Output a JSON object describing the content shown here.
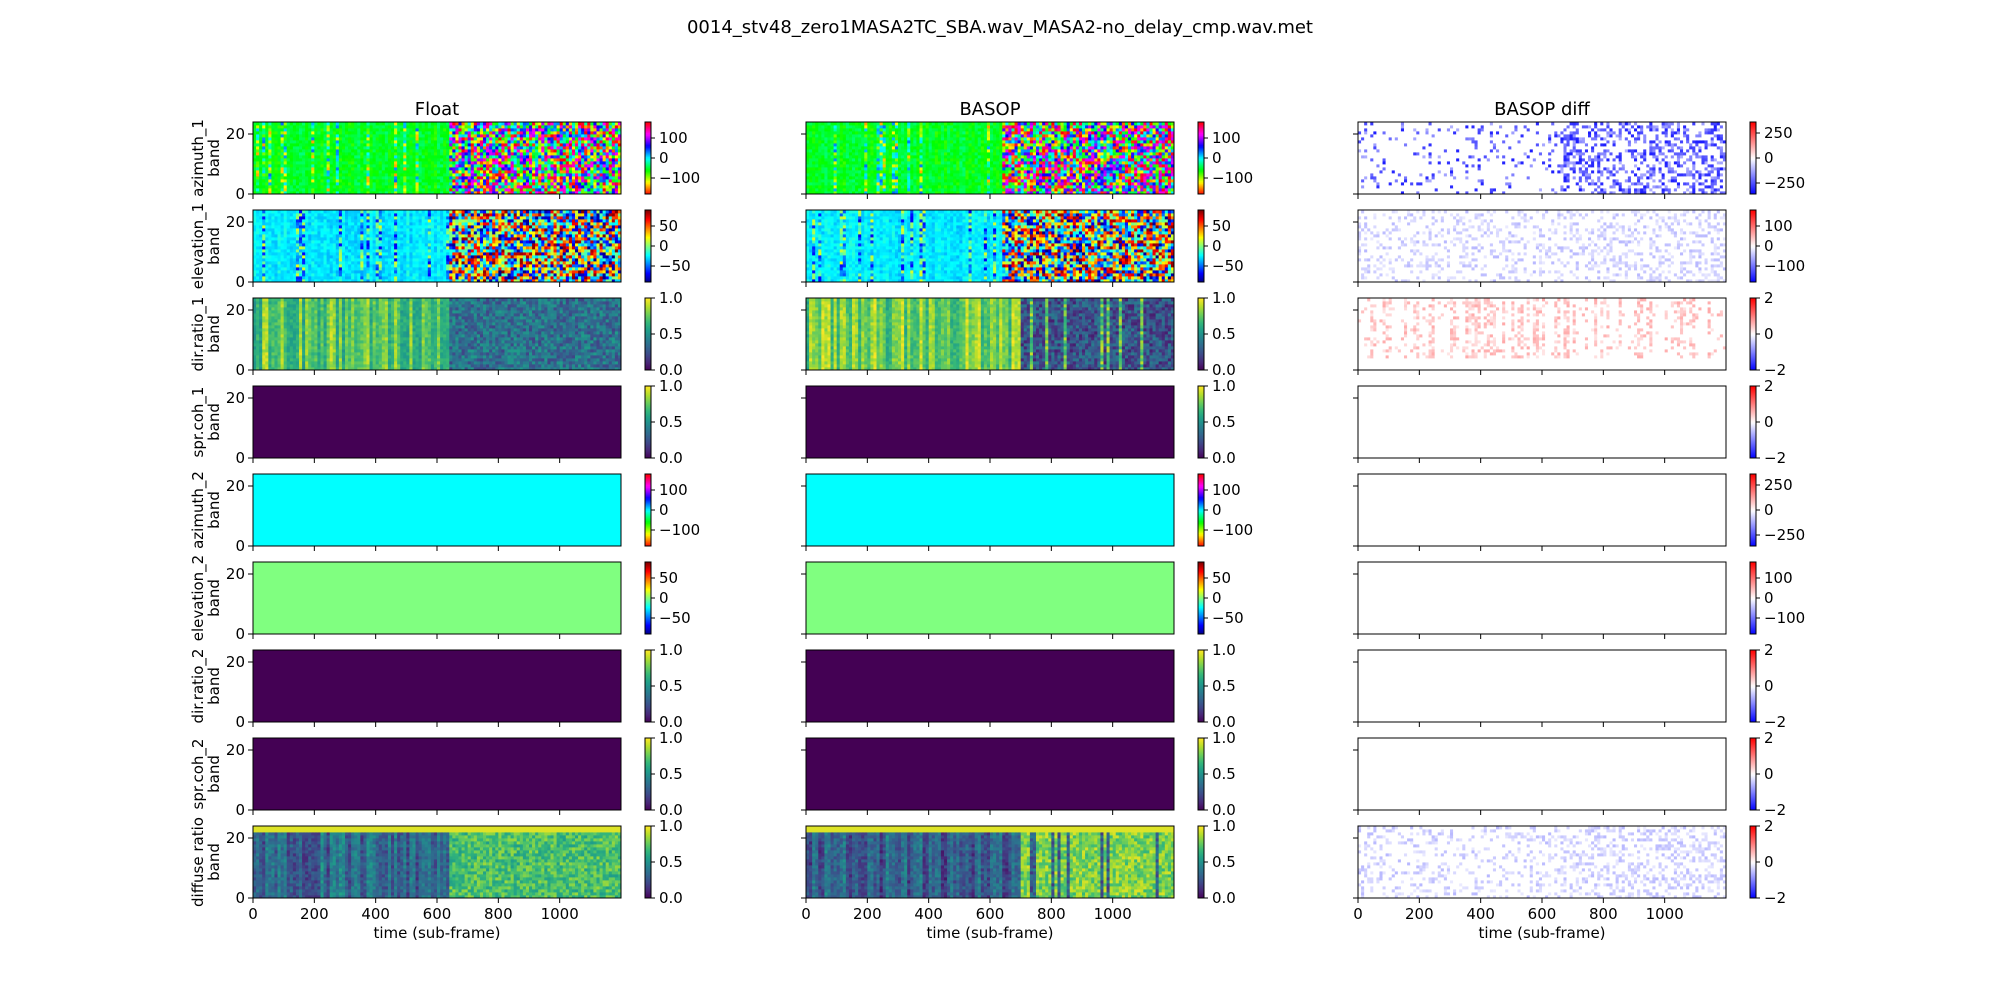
{
  "figure": {
    "suptitle": "0014_stv48_zero1MASA2TC_SBA.wav_MASA2-no_delay_cmp.wav.met"
  },
  "chart_data": {
    "type": "heatmap",
    "columns": [
      {
        "title": "Float",
        "kind": "value"
      },
      {
        "title": "BASOP",
        "kind": "value"
      },
      {
        "title": "BASOP diff",
        "kind": "diff"
      }
    ],
    "rows": [
      {
        "name": "azimuth_1",
        "ylabel": [
          "azimuth_1",
          "band"
        ],
        "cmap": "hsv",
        "vlim": [
          -180,
          180
        ],
        "ticks": [
          "100",
          "0",
          "−100"
        ],
        "tick_values": [
          100,
          0,
          -100
        ],
        "diff_vlim": [
          -360,
          360
        ],
        "diff_ticks": [
          "250",
          "0",
          "−250"
        ],
        "diff_tick_values": [
          250,
          0,
          -250
        ],
        "pattern": "active",
        "basop_pattern": "active",
        "diff_pattern": "blue-strong"
      },
      {
        "name": "elevation_1",
        "ylabel": [
          "elevation_1",
          "band"
        ],
        "cmap": "jet",
        "vlim": [
          -90,
          90
        ],
        "ticks": [
          "50",
          "0",
          "−50"
        ],
        "tick_values": [
          50,
          0,
          -50
        ],
        "diff_vlim": [
          -180,
          180
        ],
        "diff_ticks": [
          "100",
          "0",
          "−100"
        ],
        "diff_tick_values": [
          100,
          0,
          -100
        ],
        "pattern": "active",
        "basop_pattern": "active",
        "diff_pattern": "blue-light"
      },
      {
        "name": "dir.ratio_1",
        "ylabel": [
          "dir.ratio_1",
          "band"
        ],
        "cmap": "viridis",
        "vlim": [
          0,
          1
        ],
        "ticks": [
          "1.0",
          "0.5",
          "0.0"
        ],
        "tick_values": [
          1,
          0.5,
          0
        ],
        "diff_vlim": [
          -2,
          2
        ],
        "diff_ticks": [
          "2",
          "0",
          "−2"
        ],
        "diff_tick_values": [
          2,
          0,
          -2
        ],
        "pattern": "ratio-float",
        "basop_pattern": "ratio-basop",
        "diff_pattern": "red-light"
      },
      {
        "name": "spr.coh_1",
        "ylabel": [
          "spr.coh_1",
          "band"
        ],
        "cmap": "viridis",
        "vlim": [
          0,
          1
        ],
        "ticks": [
          "1.0",
          "0.5",
          "0.0"
        ],
        "tick_values": [
          1,
          0.5,
          0
        ],
        "diff_vlim": [
          -2,
          2
        ],
        "diff_ticks": [
          "2",
          "0",
          "−2"
        ],
        "diff_tick_values": [
          2,
          0,
          -2
        ],
        "constant": 0.0,
        "diff_constant": 0.0
      },
      {
        "name": "azimuth_2",
        "ylabel": [
          "azimuth_2",
          "band"
        ],
        "cmap": "hsv",
        "vlim": [
          -180,
          180
        ],
        "ticks": [
          "100",
          "0",
          "−100"
        ],
        "tick_values": [
          100,
          0,
          -100
        ],
        "diff_vlim": [
          -360,
          360
        ],
        "diff_ticks": [
          "250",
          "0",
          "−250"
        ],
        "diff_tick_values": [
          250,
          0,
          -250
        ],
        "constant": 0.0,
        "diff_constant": 0.0
      },
      {
        "name": "elevation_2",
        "ylabel": [
          "elevation_2",
          "band"
        ],
        "cmap": "jet",
        "vlim": [
          -90,
          90
        ],
        "ticks": [
          "50",
          "0",
          "−50"
        ],
        "tick_values": [
          50,
          0,
          -50
        ],
        "diff_vlim": [
          -180,
          180
        ],
        "diff_ticks": [
          "100",
          "0",
          "−100"
        ],
        "diff_tick_values": [
          100,
          0,
          -100
        ],
        "constant": 0.0,
        "diff_constant": 0.0
      },
      {
        "name": "dir.ratio_2",
        "ylabel": [
          "dir.ratio_2",
          "band"
        ],
        "cmap": "viridis",
        "vlim": [
          0,
          1
        ],
        "ticks": [
          "1.0",
          "0.5",
          "0.0"
        ],
        "tick_values": [
          1,
          0.5,
          0
        ],
        "diff_vlim": [
          -2,
          2
        ],
        "diff_ticks": [
          "2",
          "0",
          "−2"
        ],
        "diff_tick_values": [
          2,
          0,
          -2
        ],
        "constant": 0.0,
        "diff_constant": 0.0
      },
      {
        "name": "spr.coh_2",
        "ylabel": [
          "spr.coh_2",
          "band"
        ],
        "cmap": "viridis",
        "vlim": [
          0,
          1
        ],
        "ticks": [
          "1.0",
          "0.5",
          "0.0"
        ],
        "tick_values": [
          1,
          0.5,
          0
        ],
        "diff_vlim": [
          -2,
          2
        ],
        "diff_ticks": [
          "2",
          "0",
          "−2"
        ],
        "diff_tick_values": [
          2,
          0,
          -2
        ],
        "constant": 0.0,
        "diff_constant": 0.0
      },
      {
        "name": "diffuse ratio",
        "ylabel": [
          "diffuse ratio",
          "band"
        ],
        "cmap": "viridis",
        "vlim": [
          0,
          1
        ],
        "ticks": [
          "1.0",
          "0.5",
          "0.0"
        ],
        "tick_values": [
          1,
          0.5,
          0
        ],
        "diff_vlim": [
          -2,
          2
        ],
        "diff_ticks": [
          "2",
          "0",
          "−2"
        ],
        "diff_tick_values": [
          2,
          0,
          -2
        ],
        "pattern": "diffuse-float",
        "basop_pattern": "diffuse-basop",
        "diff_pattern": "blue-light"
      }
    ],
    "xlabel": "time (sub-frame)",
    "xlim": [
      0,
      1200
    ],
    "xticks": [
      0,
      200,
      400,
      600,
      800,
      1000
    ],
    "xtick_labels": [
      "0",
      "200",
      "400",
      "600",
      "800",
      "1000"
    ],
    "ylim": [
      0,
      24
    ],
    "yticks": [
      0,
      20
    ],
    "ytick_labels": [
      "0",
      "20"
    ],
    "bands": 24,
    "subframes": 1200
  }
}
